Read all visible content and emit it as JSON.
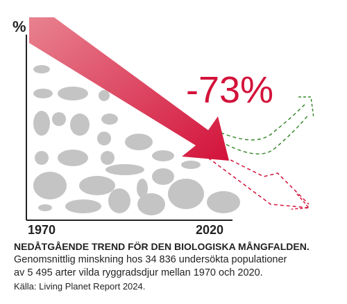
{
  "axis": {
    "y_label": "%",
    "x_start": "1970",
    "x_end": "2020"
  },
  "highlight": "-73%",
  "caption": {
    "title": "NEDÅTGÅENDE TREND FÖR DEN BIOLOGISKA MÅNGFALDEN.",
    "lines": [
      "Genomsnittlig minskning hos 34 836 undersökta populationer",
      "av 5 495 arter vilda ryggradsdjur mellan 1970 och 2020."
    ],
    "source": "Källa: Living Planet Report 2024."
  }
}
